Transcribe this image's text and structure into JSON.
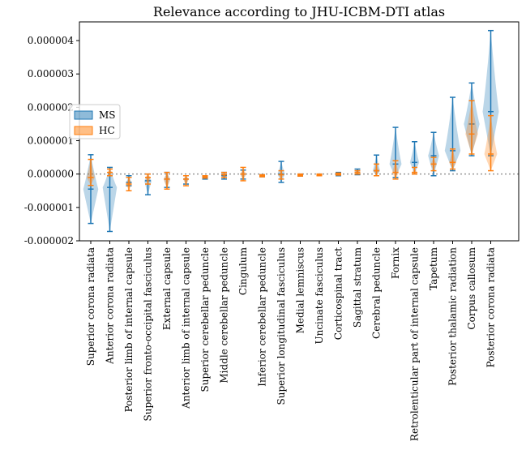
{
  "chart_data": {
    "type": "violin",
    "title": "Relevance according to JHU-ICBM-DTI atlas",
    "categories": [
      "Superior corona radiata",
      "Anterior corona radiata",
      "Posterior limb of internal capsule",
      "Superior fronto-occipital fasciculus",
      "External capsule",
      "Anterior limb of internal capsule",
      "Superior cerebellar peduncle",
      "Middle cerebellar peduncle",
      "Cingulum",
      "Inferior cerebellar peduncle",
      "Superior longitudinal fasciculus",
      "Medial lemniscus",
      "Uncinate fasciculus",
      "Corticospinal tract",
      "Sagittal stratum",
      "Cerebral peduncle",
      "Fornix",
      "Retrolenticular part of internal capsule",
      "Tapetum",
      "Posterior thalamic radiation",
      "Corpus callosum",
      "Posterior corona radiata"
    ],
    "series": [
      {
        "name": "MS",
        "color": "#1f77b4",
        "min": [
          -1.48e-06,
          -1.72e-06,
          -3.5e-07,
          -6.2e-07,
          -4e-07,
          -3e-07,
          -1.5e-07,
          -1.5e-07,
          -1.5e-07,
          -8e-08,
          -2.5e-07,
          -6e-08,
          -5e-08,
          -5e-08,
          -2e-08,
          -5e-08,
          -1e-07,
          0,
          -5e-08,
          1e-07,
          5.5e-07,
          5.5e-07
        ],
        "median": [
          -4.5e-07,
          -4e-07,
          -2.5e-07,
          -2e-07,
          -1.5e-07,
          -1.5e-07,
          -1e-07,
          -5e-08,
          0,
          -5e-08,
          0,
          -3e-08,
          -2e-08,
          0,
          5e-08,
          1e-07,
          3e-07,
          3.5e-07,
          5.5e-07,
          7e-07,
          1.5e-06,
          1.87e-06
        ],
        "max": [
          5.8e-07,
          2e-07,
          -5e-08,
          0,
          5e-08,
          -5e-08,
          -5e-08,
          5e-08,
          1.2e-07,
          -2e-08,
          3.8e-07,
          0,
          0,
          5e-08,
          1.5e-07,
          5.7e-07,
          1.4e-06,
          9.7e-07,
          1.25e-06,
          2.3e-06,
          2.73e-06,
          4.3e-06
        ]
      },
      {
        "name": "HC",
        "color": "#ff7f0e",
        "min": [
          -3.4e-07,
          -5e-08,
          -5e-07,
          -3e-07,
          -4.5e-07,
          -3.5e-07,
          -1.2e-07,
          -1e-07,
          -2e-07,
          -8e-08,
          -1.5e-07,
          -6e-08,
          -5e-08,
          -3e-08,
          0,
          -5e-08,
          -1.5e-07,
          0,
          1e-07,
          1.5e-07,
          6e-07,
          1e-07
        ],
        "median": [
          -1e-07,
          5e-08,
          -3e-07,
          -1e-07,
          -1.5e-07,
          -1.5e-07,
          -8e-08,
          -2e-08,
          0,
          -5e-08,
          -2e-08,
          -3e-08,
          -2e-08,
          0,
          5e-08,
          1e-07,
          5e-08,
          5e-08,
          3e-07,
          3.5e-07,
          1.2e-06,
          6e-07
        ],
        "max": [
          4.4e-07,
          1.5e-07,
          -1e-07,
          0,
          5e-08,
          -5e-08,
          -5e-08,
          5e-08,
          2e-07,
          -2e-08,
          1e-07,
          0,
          0,
          3e-08,
          1e-07,
          3e-07,
          4e-07,
          2e-07,
          5e-07,
          7.5e-07,
          2.2e-06,
          1.75e-06
        ]
      }
    ],
    "ylim": [
      -2e-06,
      4.56e-06
    ],
    "yticks": [
      -2e-06,
      -1e-06,
      {
        "value": 0,
        "label": "0.000000"
      },
      1e-06,
      2e-06,
      3e-06,
      4e-06
    ],
    "hline": {
      "value": 0,
      "color": "#999999"
    },
    "legend": "center left"
  }
}
